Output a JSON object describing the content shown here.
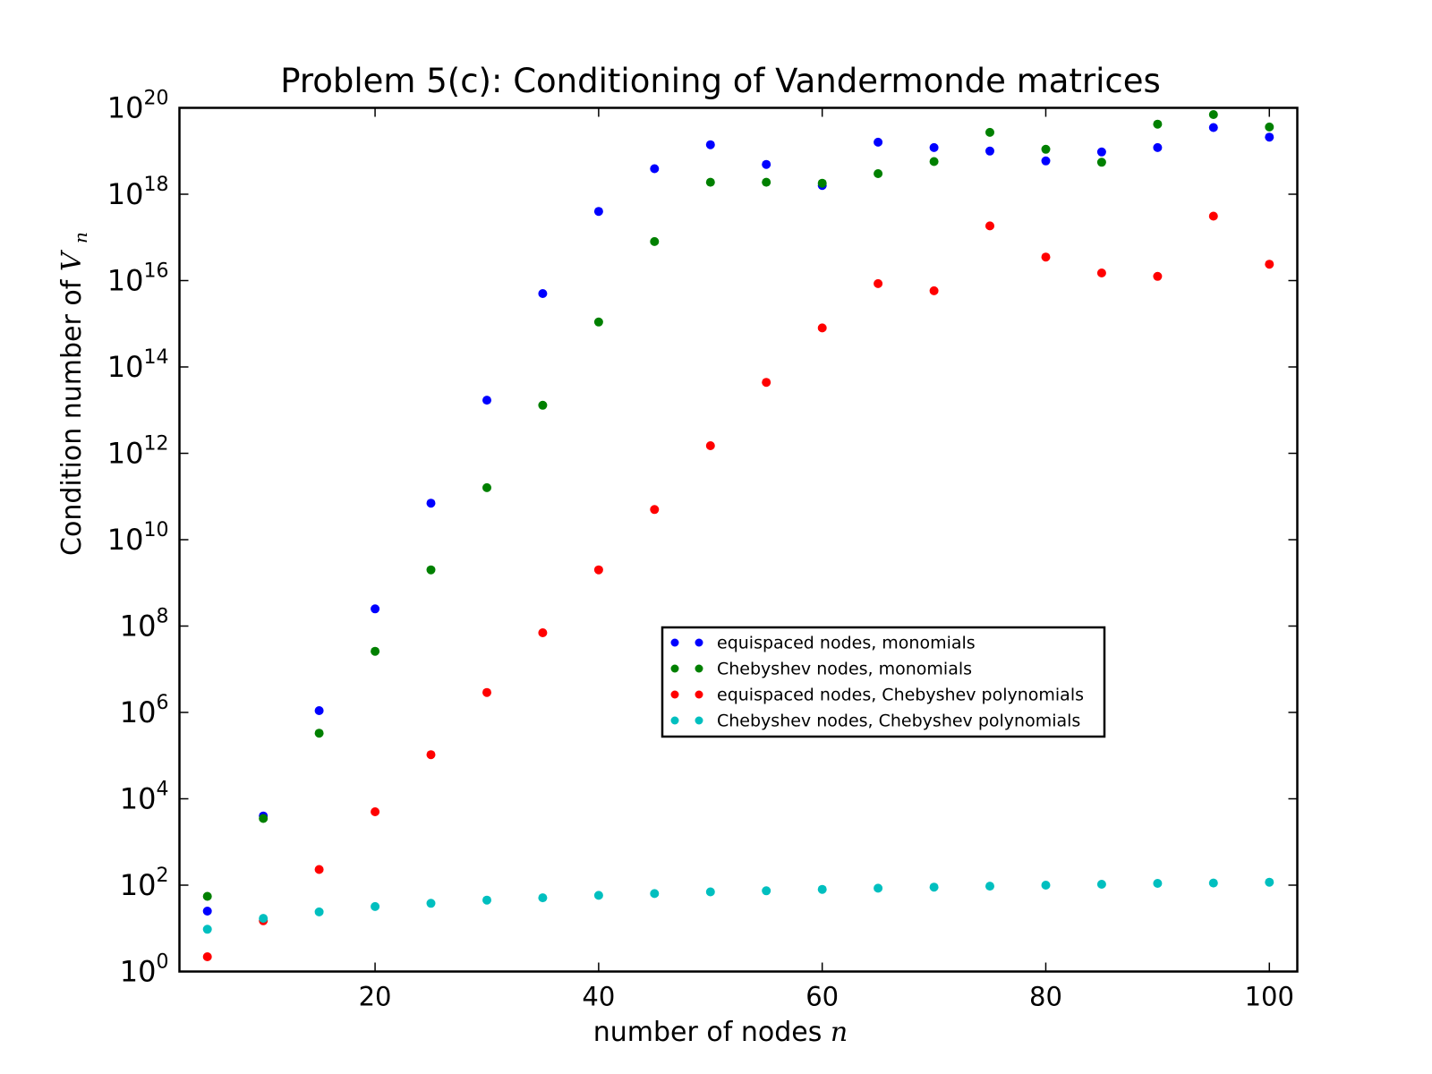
{
  "chart_data": {
    "type": "scatter",
    "title": "Problem 5(c): Conditioning of Vandermonde matrices",
    "xlabel": "number of nodes",
    "xlabel_var": "n",
    "ylabel": "Condition number of",
    "ylabel_var": "V",
    "ylabel_sub": "n",
    "xlim": [
      2.5,
      102.5
    ],
    "ylim_exponent": [
      0,
      20
    ],
    "yscale": "log",
    "grid": false,
    "legend_position": "center-right",
    "x_ticks": [
      20,
      40,
      60,
      80,
      100
    ],
    "x_tick_labels": [
      "20",
      "40",
      "60",
      "80",
      "100"
    ],
    "y_ticks_exponent": [
      0,
      2,
      4,
      6,
      8,
      10,
      12,
      14,
      16,
      18,
      20
    ],
    "y_tick_base": "10",
    "y_tick_exponent_labels": [
      "0",
      "2",
      "4",
      "6",
      "8",
      "10",
      "12",
      "14",
      "16",
      "18",
      "20"
    ],
    "x": [
      5,
      10,
      15,
      20,
      25,
      30,
      35,
      40,
      45,
      50,
      55,
      60,
      65,
      70,
      75,
      80,
      85,
      90,
      95,
      100
    ],
    "series": [
      {
        "name": "equispaced nodes, monomials",
        "color": "#0000ff",
        "values": [
          25,
          4000,
          1100000.0,
          250000000.0,
          70000000000.0,
          17000000000000.0,
          5000000000000000.0,
          4e+17,
          3.9e+18,
          1.4e+19,
          4.9e+18,
          1.6e+18,
          1.6e+19,
          1.2e+19,
          1e+19,
          5.9e+18,
          9.5e+18,
          1.2e+19,
          3.5e+19,
          2.1e+19
        ]
      },
      {
        "name": "Chebyshev nodes, monomials",
        "color": "#008000",
        "values": [
          55,
          3500,
          330000.0,
          26000000.0,
          2000000000.0,
          160000000000.0,
          13000000000000.0,
          1100000000000000.0,
          8e+16,
          1.9e+18,
          1.9e+18,
          1.8e+18,
          3e+18,
          5.7e+18,
          2.7e+19,
          1.1e+19,
          5.5e+18,
          4.2e+19,
          7e+19,
          3.6e+19
        ]
      },
      {
        "name": "equispaced nodes, Chebyshev polynomials",
        "color": "#ff0000",
        "values": [
          2.2,
          15,
          230,
          5000,
          105000.0,
          2900000.0,
          70000000.0,
          2000000000.0,
          50000000000.0,
          1500000000000.0,
          44000000000000.0,
          800000000000000.0,
          8500000000000000.0,
          5800000000000000.0,
          1.85e+17,
          3.5e+16,
          1.5e+16,
          1.25e+16,
          3.1e+17,
          2.4e+16
        ]
      },
      {
        "name": "Chebyshev nodes, Chebyshev polynomials",
        "color": "#00bfbf",
        "values": [
          9.5,
          17,
          24,
          32,
          38,
          45,
          51,
          58,
          64,
          70,
          74,
          80,
          85,
          90,
          95,
          100,
          105,
          110,
          112,
          117
        ]
      }
    ]
  }
}
